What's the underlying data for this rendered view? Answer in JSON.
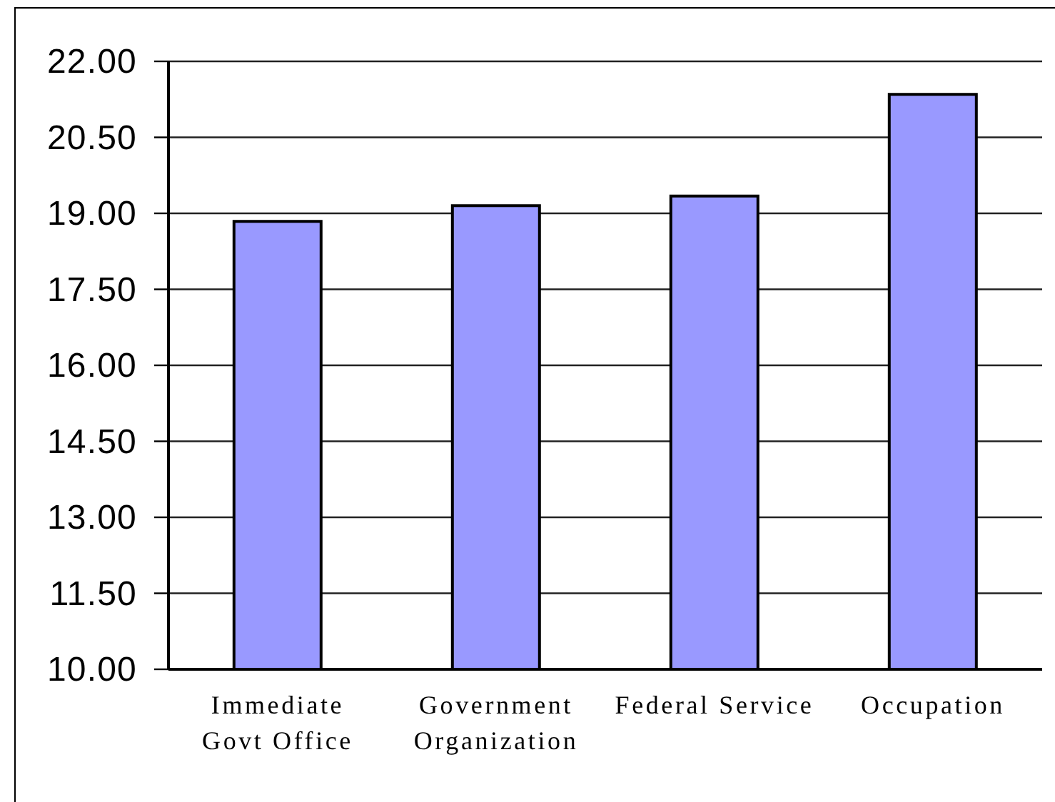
{
  "chart_data": {
    "type": "bar",
    "categories": [
      "Immediate Govt Office",
      "Government Organization",
      "Federal Service",
      "Occupation"
    ],
    "values": [
      18.84,
      19.15,
      19.34,
      21.35
    ],
    "color": "#9999ff",
    "ylim": [
      10,
      22
    ],
    "yticks": [
      {
        "value": 10,
        "label": "10.00"
      },
      {
        "value": 11.5,
        "label": "11.50"
      },
      {
        "value": 13,
        "label": "13.00"
      },
      {
        "value": 14.5,
        "label": "14.50"
      },
      {
        "value": 16,
        "label": "16.00"
      },
      {
        "value": 17.5,
        "label": "17.50"
      },
      {
        "value": 19,
        "label": "19.00"
      },
      {
        "value": 20.5,
        "label": "20.50"
      },
      {
        "value": 22,
        "label": "22.00"
      }
    ],
    "grid": "y"
  }
}
